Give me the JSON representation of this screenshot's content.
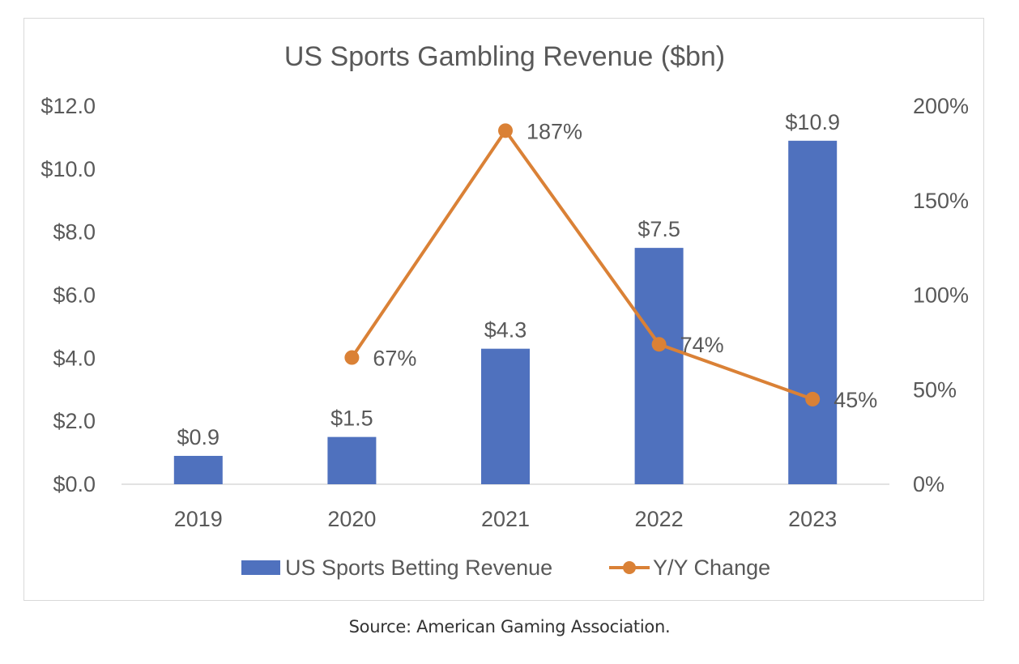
{
  "chart_data": {
    "type": "bar",
    "title": "US Sports Gambling Revenue ($bn)",
    "categories": [
      "2019",
      "2020",
      "2021",
      "2022",
      "2023"
    ],
    "series": [
      {
        "name": "US Sports Betting Revenue",
        "type": "bar",
        "axis": "left",
        "values": [
          0.9,
          1.5,
          4.3,
          7.5,
          10.9
        ],
        "labels": [
          "$0.9",
          "$1.5",
          "$4.3",
          "$7.5",
          "$10.9"
        ]
      },
      {
        "name": "Y/Y Change",
        "type": "line",
        "axis": "right",
        "values": [
          null,
          67,
          187,
          74,
          45
        ],
        "labels": [
          "",
          "67%",
          "187%",
          "74%",
          "45%"
        ]
      }
    ],
    "y_left": {
      "range": [
        0,
        12
      ],
      "ticks": [
        "$0.0",
        "$2.0",
        "$4.0",
        "$6.0",
        "$8.0",
        "$10.0",
        "$12.0"
      ]
    },
    "y_right": {
      "range": [
        0,
        200
      ],
      "ticks": [
        "0%",
        "50%",
        "100%",
        "150%",
        "200%"
      ]
    },
    "grid": false,
    "legend": "bottom",
    "colors": {
      "bar": "#4F71BE",
      "line": "#DA8136",
      "text": "#595959",
      "axis": "#d9d9d9"
    }
  },
  "caption": "Source: American Gaming Association."
}
